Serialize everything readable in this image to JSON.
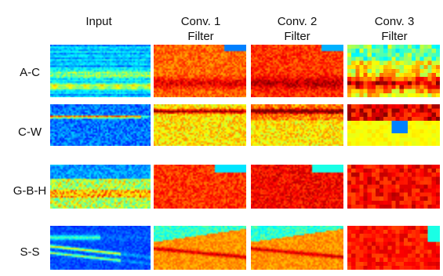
{
  "columns": [
    {
      "label": "Input"
    },
    {
      "label": "Conv. 1\nFilter"
    },
    {
      "label": "Conv. 2\nFilter"
    },
    {
      "label": "Conv. 3\nFilter"
    }
  ],
  "rows": [
    {
      "label": "A-C"
    },
    {
      "label": "C-W"
    },
    {
      "label": "G-B-H"
    },
    {
      "label": "S-S"
    }
  ],
  "colormap": "jet"
}
